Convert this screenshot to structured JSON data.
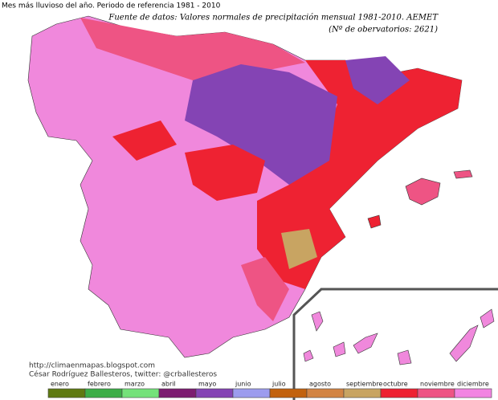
{
  "title": "Mes más lluvioso del año. Periodo de referencia 1981 - 2010",
  "source": "Fuente de datos: Valores normales de precipitación mensual 1981-2010. AEMET",
  "observatories": "(Nº de obervatorios: 2621)",
  "url": "http://climaenmapas.blogspot.com",
  "author": "César Rodríguez Ballesteros, twitter: @crballesteros",
  "legend": [
    {
      "label": "enero",
      "color": "#5f7a12"
    },
    {
      "label": "febrero",
      "color": "#3cae48"
    },
    {
      "label": "marzo",
      "color": "#74e27a"
    },
    {
      "label": "abril",
      "color": "#7c1c70"
    },
    {
      "label": "mayo",
      "color": "#8444b4"
    },
    {
      "label": "junio",
      "color": "#9c9cee"
    },
    {
      "label": "julio",
      "color": "#c2620e"
    },
    {
      "label": "agosto",
      "color": "#d28444"
    },
    {
      "label": "septiembre",
      "color": "#c8a462"
    },
    {
      "label": "octubre",
      "color": "#ee2232"
    },
    {
      "label": "noviembre",
      "color": "#ee5484"
    },
    {
      "label": "diciembre",
      "color": "#f284e2"
    }
  ]
}
